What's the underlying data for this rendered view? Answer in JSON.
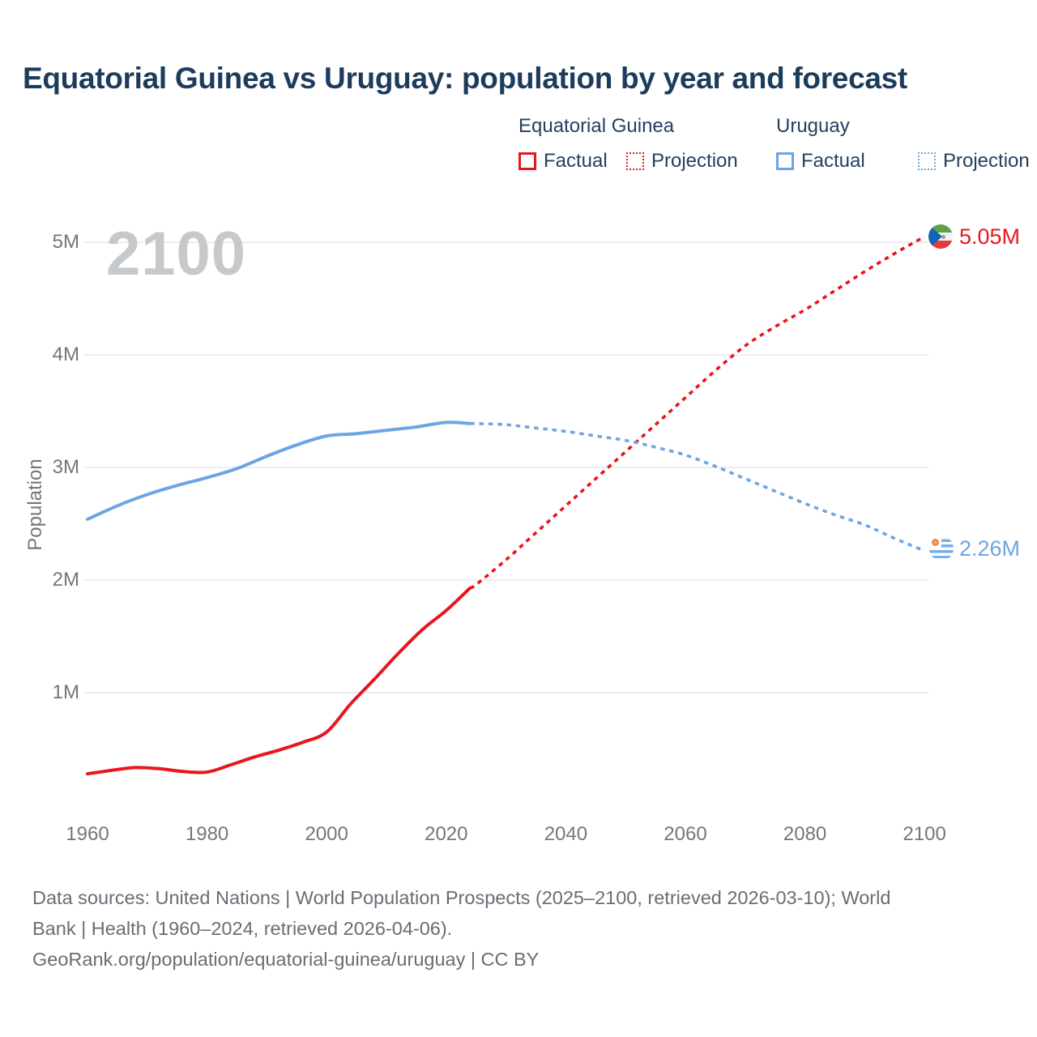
{
  "title": "Equatorial Guinea vs Uruguay: population by year and forecast",
  "watermark": "2100",
  "legend": {
    "groups": [
      {
        "name": "Equatorial Guinea",
        "factual_label": "Factual",
        "projection_label": "Projection"
      },
      {
        "name": "Uruguay",
        "factual_label": "Factual",
        "projection_label": "Projection"
      }
    ]
  },
  "chart_data": {
    "type": "line",
    "title": "Equatorial Guinea vs Uruguay: population by year and forecast",
    "xlabel": "",
    "ylabel": "Population",
    "xlim": [
      1955,
      2115
    ],
    "ylim": [
      0,
      5.3
    ],
    "grid": "horizontal",
    "legend_position": "top-right",
    "x_ticks": [
      1960,
      1980,
      2000,
      2020,
      2040,
      2060,
      2080,
      2100
    ],
    "y_ticks": [
      {
        "value": 1,
        "label": "1M"
      },
      {
        "value": 2,
        "label": "2M"
      },
      {
        "value": 3,
        "label": "3M"
      },
      {
        "value": 4,
        "label": "4M"
      },
      {
        "value": 5,
        "label": "5M"
      }
    ],
    "units": "millions of people",
    "series": [
      {
        "name": "Equatorial Guinea",
        "color": "#e8161e",
        "factual_style": "solid",
        "projection_style": "dotted",
        "end_label": "5.05M",
        "end_value": 5.05,
        "flag": "equatorial-guinea",
        "factual": [
          [
            1960,
            0.28
          ],
          [
            1964,
            0.31
          ],
          [
            1968,
            0.335
          ],
          [
            1972,
            0.325
          ],
          [
            1976,
            0.3
          ],
          [
            1980,
            0.295
          ],
          [
            1984,
            0.36
          ],
          [
            1988,
            0.43
          ],
          [
            1992,
            0.49
          ],
          [
            1996,
            0.56
          ],
          [
            2000,
            0.65
          ],
          [
            2004,
            0.9
          ],
          [
            2008,
            1.12
          ],
          [
            2012,
            1.35
          ],
          [
            2016,
            1.56
          ],
          [
            2020,
            1.73
          ],
          [
            2024,
            1.93
          ]
        ],
        "projection": [
          [
            2025,
            1.96
          ],
          [
            2030,
            2.18
          ],
          [
            2035,
            2.42
          ],
          [
            2040,
            2.66
          ],
          [
            2045,
            2.9
          ],
          [
            2050,
            3.14
          ],
          [
            2055,
            3.38
          ],
          [
            2060,
            3.62
          ],
          [
            2065,
            3.86
          ],
          [
            2070,
            4.08
          ],
          [
            2075,
            4.25
          ],
          [
            2080,
            4.4
          ],
          [
            2085,
            4.57
          ],
          [
            2090,
            4.74
          ],
          [
            2095,
            4.9
          ],
          [
            2100,
            5.05
          ]
        ]
      },
      {
        "name": "Uruguay",
        "color": "#6da5e3",
        "factual_style": "solid",
        "projection_style": "dotted",
        "end_label": "2.26M",
        "end_value": 2.26,
        "flag": "uruguay",
        "factual": [
          [
            1960,
            2.54
          ],
          [
            1965,
            2.66
          ],
          [
            1970,
            2.76
          ],
          [
            1975,
            2.84
          ],
          [
            1980,
            2.91
          ],
          [
            1985,
            2.99
          ],
          [
            1990,
            3.1
          ],
          [
            1995,
            3.2
          ],
          [
            2000,
            3.28
          ],
          [
            2005,
            3.3
          ],
          [
            2010,
            3.33
          ],
          [
            2015,
            3.36
          ],
          [
            2020,
            3.4
          ],
          [
            2024,
            3.39
          ]
        ],
        "projection": [
          [
            2025,
            3.39
          ],
          [
            2030,
            3.38
          ],
          [
            2035,
            3.35
          ],
          [
            2040,
            3.32
          ],
          [
            2045,
            3.28
          ],
          [
            2050,
            3.24
          ],
          [
            2055,
            3.18
          ],
          [
            2060,
            3.11
          ],
          [
            2065,
            3.01
          ],
          [
            2070,
            2.9
          ],
          [
            2075,
            2.79
          ],
          [
            2080,
            2.68
          ],
          [
            2085,
            2.58
          ],
          [
            2090,
            2.49
          ],
          [
            2095,
            2.37
          ],
          [
            2100,
            2.26
          ]
        ]
      }
    ]
  },
  "footer": {
    "lines": [
      "Data sources: United Nations | World Population Prospects (2025–2100, retrieved 2026-03-10); World",
      "Bank | Health (1960–2024, retrieved 2026-04-06).",
      "GeoRank.org/population/equatorial-guinea/uruguay | CC BY"
    ]
  }
}
